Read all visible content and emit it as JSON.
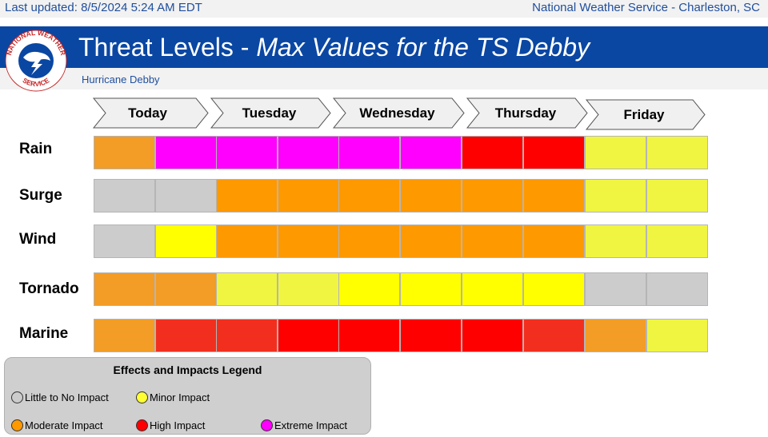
{
  "header": {
    "last_updated": "Last updated: 8/5/2024 5:24 AM EDT",
    "office": "National Weather Service - Charleston, SC",
    "title_main": "Threat Levels - ",
    "title_italic": "Max Values for the TS Debby",
    "subtitle": "Hurricane Debby"
  },
  "logo": {
    "text_top": "NATIONAL WEATHER",
    "text_bottom": "SERVICE"
  },
  "days": [
    "Today",
    "Tuesday",
    "Wednesday",
    "Thursday",
    "Friday"
  ],
  "colors": {
    "none": "#cccccc",
    "minor": "#f0f542",
    "minor_bright": "#ffff00",
    "moderate": "#ff9900",
    "moderate_light": "#f39c26",
    "high": "#ff0000",
    "high_soft": "#f22f1e",
    "extreme": "#ff00ff"
  },
  "threats": [
    {
      "name": "Rain",
      "levels": [
        "moderate_light",
        "extreme",
        "extreme",
        "extreme",
        "extreme",
        "extreme",
        "high",
        "high",
        "minor",
        "minor"
      ]
    },
    {
      "name": "Surge",
      "levels": [
        "none",
        "none",
        "moderate",
        "moderate",
        "moderate",
        "moderate",
        "moderate",
        "moderate",
        "minor",
        "minor"
      ]
    },
    {
      "name": "Wind",
      "levels": [
        "none",
        "minor_bright",
        "moderate",
        "moderate",
        "moderate",
        "moderate",
        "moderate",
        "moderate",
        "minor",
        "minor"
      ]
    },
    {
      "name": "Tornado",
      "levels": [
        "moderate_light",
        "moderate_light",
        "minor",
        "minor",
        "minor_bright",
        "minor_bright",
        "minor_bright",
        "minor_bright",
        "none",
        "none"
      ]
    },
    {
      "name": "Marine",
      "levels": [
        "moderate_light",
        "high_soft",
        "high_soft",
        "high",
        "high",
        "high",
        "high",
        "high_soft",
        "moderate_light",
        "minor"
      ]
    }
  ],
  "legend": {
    "title": "Effects and Impacts Legend",
    "items": [
      {
        "label": "Little to No Impact",
        "color": "#cccccc"
      },
      {
        "label": "Minor Impact",
        "color": "#ffff33"
      },
      {
        "label": "Moderate Impact",
        "color": "#ff9900"
      },
      {
        "label": "High Impact",
        "color": "#ff0000"
      },
      {
        "label": "Extreme Impact",
        "color": "#ff00ff"
      }
    ]
  }
}
